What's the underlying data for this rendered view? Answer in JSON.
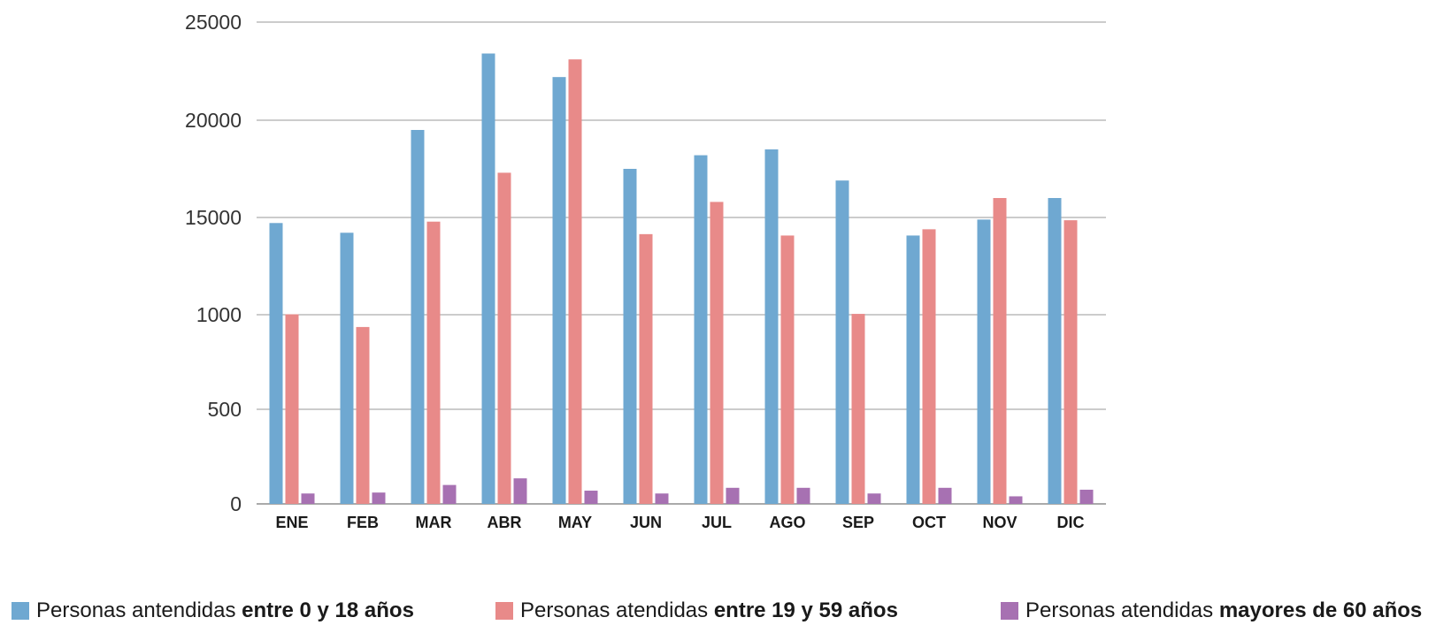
{
  "chart_data": {
    "type": "bar",
    "categories": [
      "ENE",
      "FEB",
      "MAR",
      "ABR",
      "MAY",
      "JUN",
      "JUL",
      "AGO",
      "SEP",
      "OCT",
      "NOV",
      "DIC"
    ],
    "yticks": [
      {
        "label": "0",
        "value": 0
      },
      {
        "label": "500",
        "value": 500
      },
      {
        "label": "1000",
        "value": 1000
      },
      {
        "label": "15000",
        "value": 15000
      },
      {
        "label": "20000",
        "value": 20000
      },
      {
        "label": "25000",
        "value": 25000
      }
    ],
    "series": [
      {
        "name_prefix": "Personas antendidas ",
        "name_bold": "entre 0 y 18 años",
        "color": "#6FA8D1",
        "values": [
          14200,
          12800,
          19500,
          23400,
          22200,
          17500,
          18200,
          18500,
          16900,
          12400,
          14700,
          16000
        ]
      },
      {
        "name_prefix": "Personas atendidas ",
        "name_bold": "entre 19 y 59 años",
        "color": "#E88A89",
        "values": [
          1060,
          935,
          14400,
          17300,
          23100,
          12600,
          15800,
          12400,
          1120,
          13300,
          16000,
          14600
        ]
      },
      {
        "name_prefix": "Personas atendidas ",
        "name_bold": "mayores de 60 años",
        "color": "#A771B2",
        "values": [
          55,
          60,
          100,
          135,
          70,
          55,
          85,
          85,
          55,
          85,
          40,
          75
        ]
      }
    ],
    "grid": true,
    "legend_position": "bottom"
  }
}
